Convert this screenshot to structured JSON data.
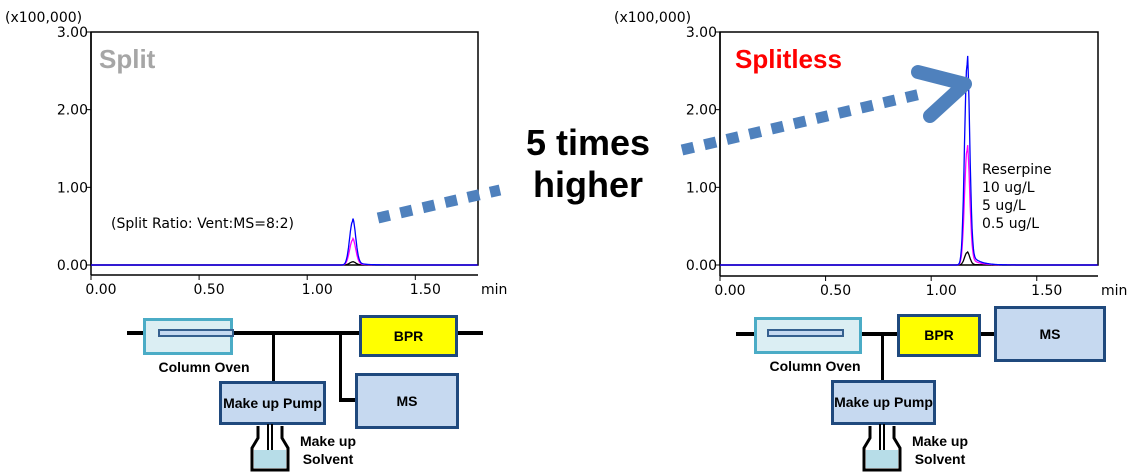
{
  "chart_data": [
    {
      "type": "line",
      "title": "Split",
      "title_color": "#a6a6a6",
      "annotation": "(Split Ratio: Vent:MS=8:2)",
      "ylabel": "(x100,000)",
      "xlabel": "min",
      "xlim": [
        0,
        1.79
      ],
      "ylim": [
        0,
        3
      ],
      "xticks": [
        "0.00",
        "0.50",
        "1.00",
        "1.50"
      ],
      "yticks": [
        "0.00",
        "1.00",
        "2.00",
        "3.00"
      ],
      "peak_time": 1.21,
      "series": [
        {
          "color": "#0000ff",
          "peak": 0.56
        },
        {
          "color": "#ff00ff",
          "peak": 0.32
        },
        {
          "color": "#000000",
          "peak": 0.04
        }
      ]
    },
    {
      "type": "line",
      "title": "Splitless",
      "title_color": "#ff0000",
      "ylabel": "(x100,000)",
      "xlabel": "min",
      "xlim": [
        0,
        1.79
      ],
      "ylim": [
        0,
        3
      ],
      "xticks": [
        "0.00",
        "0.50",
        "1.00",
        "1.50"
      ],
      "yticks": [
        "0.00",
        "1.00",
        "2.00",
        "3.00"
      ],
      "peak_time": 1.17,
      "legend_title": "Reserpine",
      "series": [
        {
          "name": "10  ug/L",
          "color": "#0000ff",
          "label_color": "#0070c0",
          "peak": 2.58
        },
        {
          "name": " 5  ug/L",
          "color": "#ff00ff",
          "label_color": "#ff3399",
          "peak": 1.48
        },
        {
          "name": "0.5 ug/L",
          "color": "#000000",
          "label_color": "#000000",
          "peak": 0.16
        }
      ]
    }
  ],
  "comparison": {
    "line1": "5 times",
    "line2": "higher",
    "arrow_color": "#4f81bd"
  },
  "diagram_left": {
    "oven": "Column Oven",
    "bpr": "BPR",
    "ms": "MS",
    "pump": "Make up Pump",
    "solvent": "Make up Solvent"
  },
  "diagram_right": {
    "oven": "Column Oven",
    "bpr": "BPR",
    "ms": "MS",
    "pump": "Make up Pump",
    "solvent": "Make up Solvent"
  }
}
